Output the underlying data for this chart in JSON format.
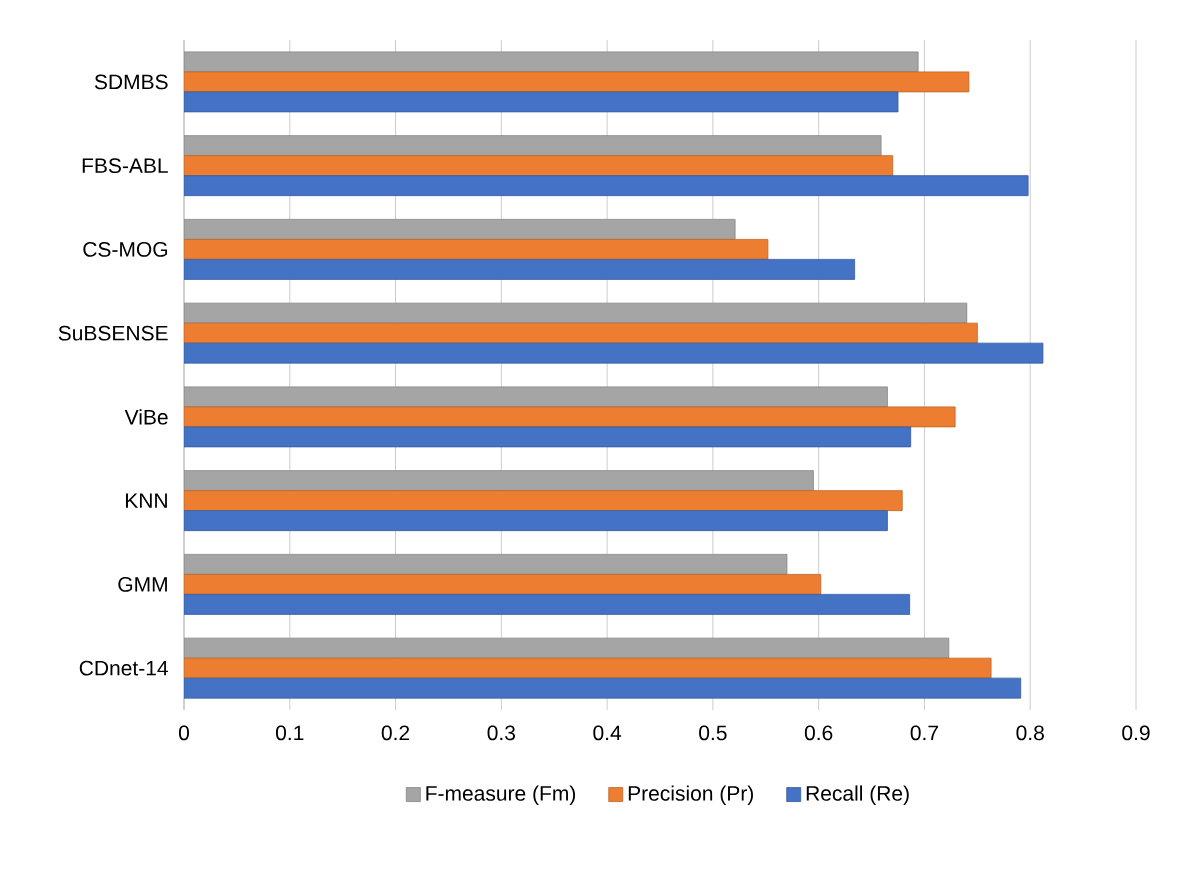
{
  "chart_data": {
    "type": "bar",
    "orientation": "horizontal",
    "categories": [
      "SDMBS",
      "FBS-ABL",
      "CS-MOG",
      "SuBSENSE",
      "ViBe",
      "KNN",
      "GMM",
      "CDnet-14"
    ],
    "series": [
      {
        "name": "F-measure (Fm)",
        "color": "#a5a5a5",
        "values": [
          0.694,
          0.659,
          0.521,
          0.74,
          0.665,
          0.595,
          0.57,
          0.723
        ]
      },
      {
        "name": "Precision (Pr)",
        "color": "#ed7d31",
        "values": [
          0.742,
          0.67,
          0.552,
          0.75,
          0.729,
          0.679,
          0.602,
          0.763
        ]
      },
      {
        "name": "Recall (Re)",
        "color": "#4472c4",
        "values": [
          0.675,
          0.798,
          0.634,
          0.812,
          0.687,
          0.665,
          0.686,
          0.791
        ]
      }
    ],
    "xlim": [
      0,
      0.9
    ],
    "xticks": [
      0,
      0.1,
      0.2,
      0.3,
      0.4,
      0.5,
      0.6,
      0.7,
      0.8,
      0.9
    ],
    "grid": "x",
    "legend": "bottom"
  }
}
